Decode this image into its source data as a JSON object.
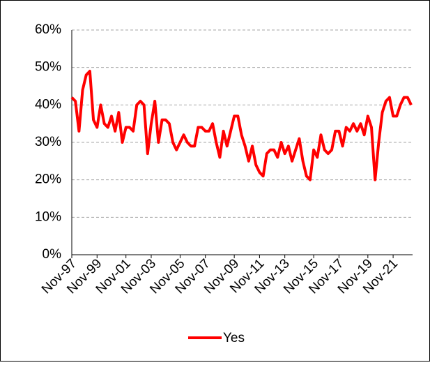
{
  "chart_data": {
    "type": "line",
    "categories": [
      "Nov-97",
      null,
      null,
      null,
      null,
      null,
      null,
      "Nov-99",
      null,
      null,
      null,
      null,
      null,
      null,
      null,
      "Nov-01",
      null,
      null,
      null,
      null,
      null,
      null,
      "Nov-03",
      null,
      null,
      null,
      null,
      null,
      null,
      null,
      "Nov-05",
      null,
      null,
      null,
      null,
      null,
      null,
      "Nov-07",
      null,
      null,
      null,
      null,
      null,
      null,
      null,
      "Nov-09",
      null,
      null,
      null,
      null,
      null,
      null,
      "Nov-11",
      null,
      null,
      null,
      null,
      null,
      null,
      "Nov-13",
      null,
      null,
      null,
      null,
      null,
      null,
      null,
      "Nov-15",
      null,
      null,
      null,
      null,
      null,
      null,
      "Nov-17",
      null,
      null,
      null,
      null,
      null,
      null,
      null,
      "Nov-19",
      null,
      null,
      null,
      null,
      null,
      null,
      "Nov-21",
      null,
      null,
      null,
      null,
      null
    ],
    "series": [
      {
        "name": "Yes",
        "color": "#ff0000",
        "values": [
          42,
          41,
          33,
          44,
          48,
          49,
          36,
          34,
          40,
          35,
          34,
          37,
          33,
          38,
          30,
          34,
          34,
          33,
          40,
          41,
          40,
          27,
          35,
          41,
          30,
          36,
          36,
          35,
          30,
          28,
          30,
          32,
          30,
          29,
          29,
          34,
          34,
          33,
          33,
          35,
          30,
          26,
          33,
          29,
          33,
          37,
          37,
          32,
          29,
          25,
          29,
          24,
          22,
          21,
          27,
          28,
          28,
          26,
          30,
          27,
          29,
          25,
          28,
          31,
          25,
          21,
          20,
          28,
          26,
          32,
          28,
          27,
          28,
          33,
          33,
          29,
          34,
          33,
          35,
          33,
          35,
          32,
          37,
          34,
          20,
          30,
          38,
          41,
          42,
          37,
          37,
          40,
          42,
          42,
          40
        ]
      }
    ],
    "ylim": [
      0,
      60
    ],
    "yticks": [
      {
        "value": 0,
        "label": "0%"
      },
      {
        "value": 10,
        "label": "10%"
      },
      {
        "value": 20,
        "label": "20%"
      },
      {
        "value": 30,
        "label": "30%"
      },
      {
        "value": 40,
        "label": "40%"
      },
      {
        "value": 50,
        "label": "50%"
      },
      {
        "value": 60,
        "label": "60%"
      }
    ],
    "grid": true,
    "legend": "bottom"
  }
}
